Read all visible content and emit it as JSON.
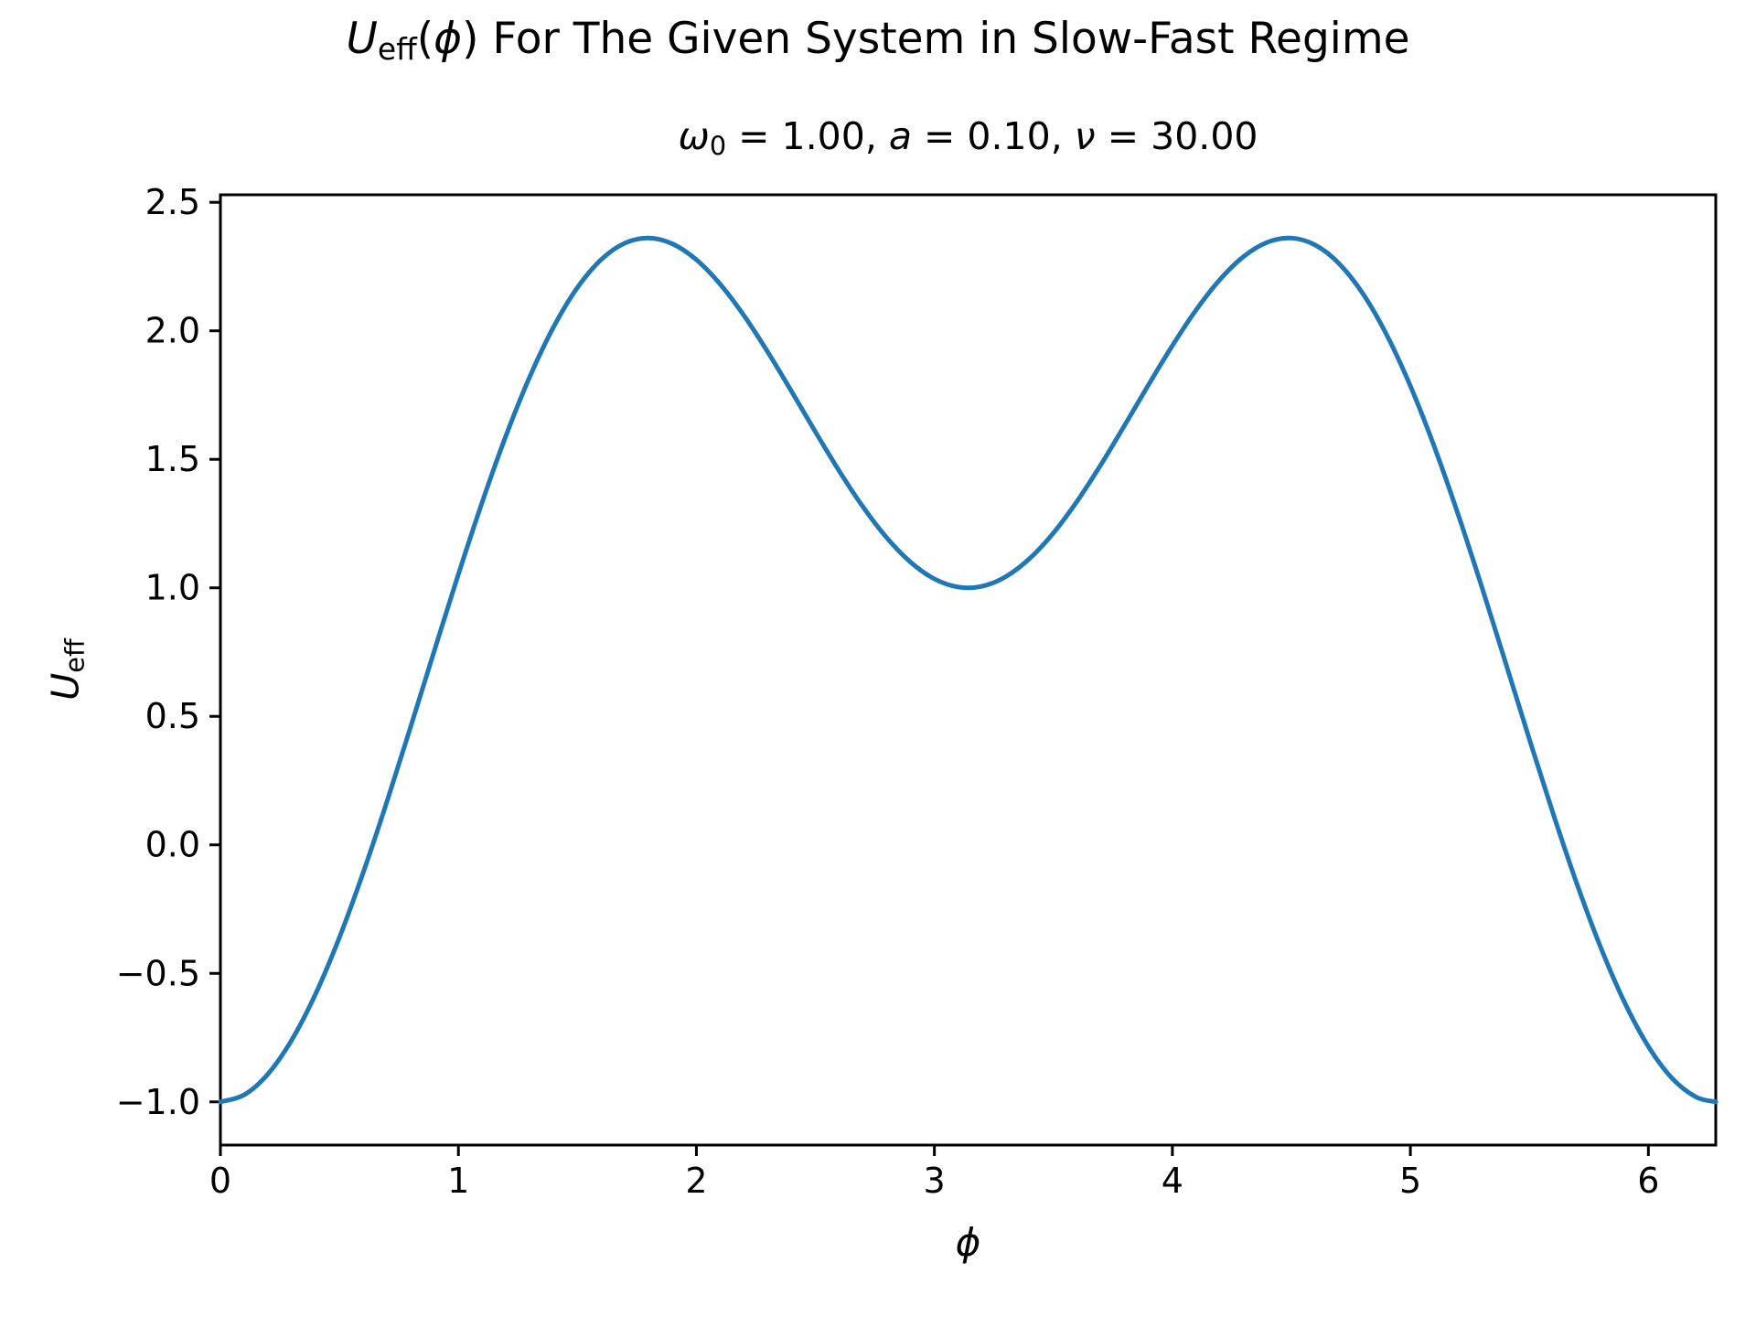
{
  "titles": {
    "suptitle": {
      "var": "U",
      "var_sub": "eff",
      "lparen": "(",
      "phi": "ϕ",
      "rest": ") For The Given System in Slow-Fast Regime"
    },
    "axes_title": {
      "omega": "ω",
      "omega_sub": "0",
      "seg1": " = 1.00, ",
      "a": "a",
      "seg2": " = 0.10, ",
      "nu": "ν",
      "seg3": " = 30.00"
    },
    "xlabel": "ϕ",
    "ylabel": {
      "var": "U",
      "var_sub": "eff"
    }
  },
  "chart_data": {
    "type": "line",
    "title": "U_eff(ϕ) For The Given System in Slow-Fast Regime",
    "subtitle": "ω_0 = 1.00, a = 0.10, ν = 30.00",
    "xlabel": "ϕ",
    "ylabel": "U_eff",
    "xlim": [
      0,
      6.28319
    ],
    "ylim": [
      -1.16806,
      2.52916
    ],
    "grid": false,
    "legend_position": "none",
    "background": "#ffffff",
    "axis_color": "#000000",
    "x_ticks": {
      "values": [
        0,
        1,
        2,
        3,
        4,
        5,
        6
      ],
      "labels": [
        "0",
        "1",
        "2",
        "3",
        "4",
        "5",
        "6"
      ]
    },
    "y_ticks": {
      "values": [
        -1.0,
        -0.5,
        0.0,
        0.5,
        1.0,
        1.5,
        2.0,
        2.5
      ],
      "labels": [
        "−1.0",
        "−0.5",
        "0.0",
        "0.5",
        "1.0",
        "1.5",
        "2.0",
        "2.5"
      ]
    },
    "series": [
      {
        "name": "U_eff",
        "color": "#1f77b4",
        "line_width": 5,
        "x": [
          0.0,
          0.1,
          0.2,
          0.3,
          0.4,
          0.5,
          0.6,
          0.7,
          0.8,
          0.9,
          1.0,
          1.1,
          1.2,
          1.3,
          1.4,
          1.5,
          1.6,
          1.7,
          1.8,
          1.9,
          2.0,
          2.1,
          2.2,
          2.3,
          2.4,
          2.5,
          2.6,
          2.7,
          2.8,
          2.9,
          3.0,
          3.1,
          3.2,
          3.3,
          3.4,
          3.5,
          3.6,
          3.7,
          3.8,
          3.9,
          4.0,
          4.1,
          4.2,
          4.3,
          4.4,
          4.5,
          4.6,
          4.7,
          4.8,
          4.9,
          5.0,
          5.1,
          5.2,
          5.3,
          5.4,
          5.5,
          5.6,
          5.7,
          5.8,
          5.9,
          6.0,
          6.1,
          6.2,
          6.2832
        ],
        "y": [
          -1.0,
          -0.9726,
          -0.8913,
          -0.7588,
          -0.5799,
          -0.3604,
          -0.108,
          0.1689,
          0.4611,
          0.759,
          1.0529,
          1.3335,
          1.5922,
          1.8215,
          2.015,
          2.168,
          2.2773,
          2.3415,
          2.3611,
          2.3381,
          2.2765,
          2.1814,
          2.0593,
          1.9174,
          1.764,
          1.607,
          1.4548,
          1.315,
          1.1947,
          1.0998,
          1.0348,
          1.003,
          1.006,
          1.0435,
          1.1137,
          1.2133,
          1.3374,
          1.4797,
          1.6333,
          1.7902,
          1.9423,
          2.0814,
          2.1995,
          2.2894,
          2.3448,
          2.3608,
          2.3339,
          2.262,
          2.1453,
          1.9852,
          1.7853,
          1.5506,
          1.2876,
          1.0041,
          0.7089,
          0.4114,
          0.1211,
          -0.1524,
          -0.3998,
          -0.613,
          -0.7845,
          -0.9086,
          -0.981,
          -1.0
        ]
      }
    ]
  }
}
